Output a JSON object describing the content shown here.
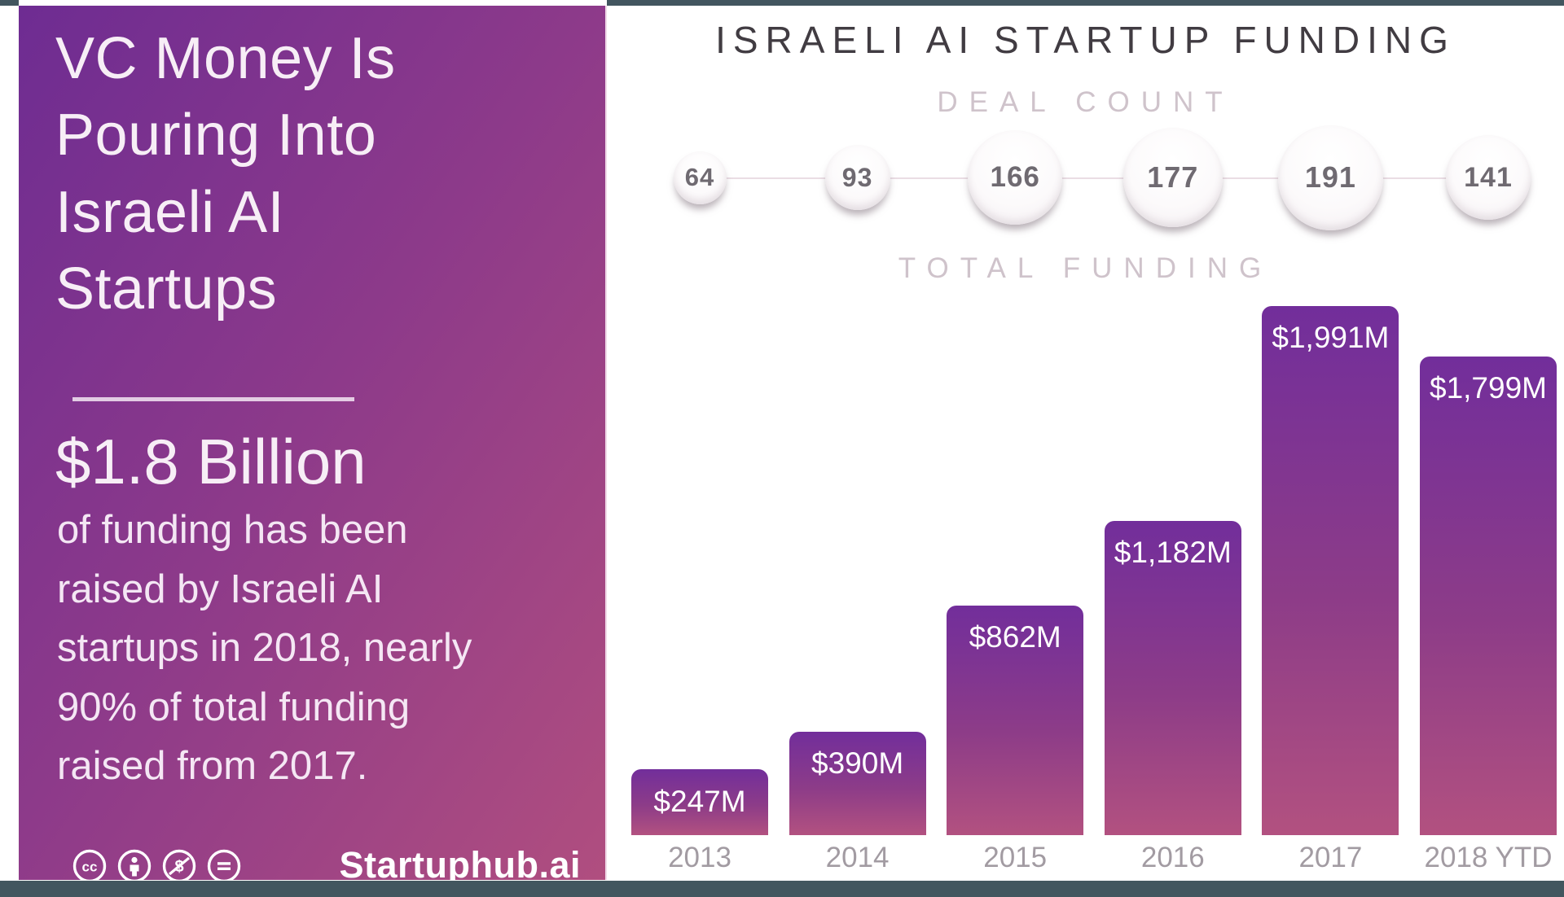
{
  "left_panel": {
    "title": "VC Money Is Pouring Into Israeli AI Startups",
    "headline": "$1.8 Billion",
    "description": "of funding has been raised by Israeli AI startups in 2018, nearly 90% of total funding raised from 2017.",
    "brand": "Startuphub.ai",
    "license_icons": [
      "cc",
      "attribution",
      "non-commercial",
      "no-derivatives"
    ],
    "colors": {
      "gradient_start": "#6e2c92",
      "gradient_end": "#b04e7f",
      "text": "#f7eef6"
    }
  },
  "chart": {
    "title": "ISRAELI AI STARTUP FUNDING",
    "deal_count_label": "DEAL COUNT",
    "total_funding_label": "TOTAL FUNDING"
  },
  "chart_data": {
    "type": "bar",
    "title": "ISRAELI AI STARTUP FUNDING",
    "categories": [
      "2013",
      "2014",
      "2015",
      "2016",
      "2017",
      "2018 YTD"
    ],
    "series": [
      {
        "name": "Deal Count",
        "values": [
          64,
          93,
          166,
          177,
          191,
          141
        ]
      },
      {
        "name": "Total Funding ($M)",
        "values": [
          247,
          390,
          862,
          1182,
          1991,
          1799
        ]
      }
    ],
    "bar_labels": [
      "$247M",
      "$390M",
      "$862M",
      "$1,182M",
      "$1,991M",
      "$1,799M"
    ],
    "xlabel": "",
    "ylabel": "Total Funding ($M)",
    "ylim": [
      0,
      2100
    ],
    "grid": false,
    "legend_position": "none",
    "bar_color_top": "#722e9b",
    "bar_color_bottom": "#b25180",
    "bubble_color": "#f8f4f6",
    "edge_strip_color": "#42565f"
  }
}
